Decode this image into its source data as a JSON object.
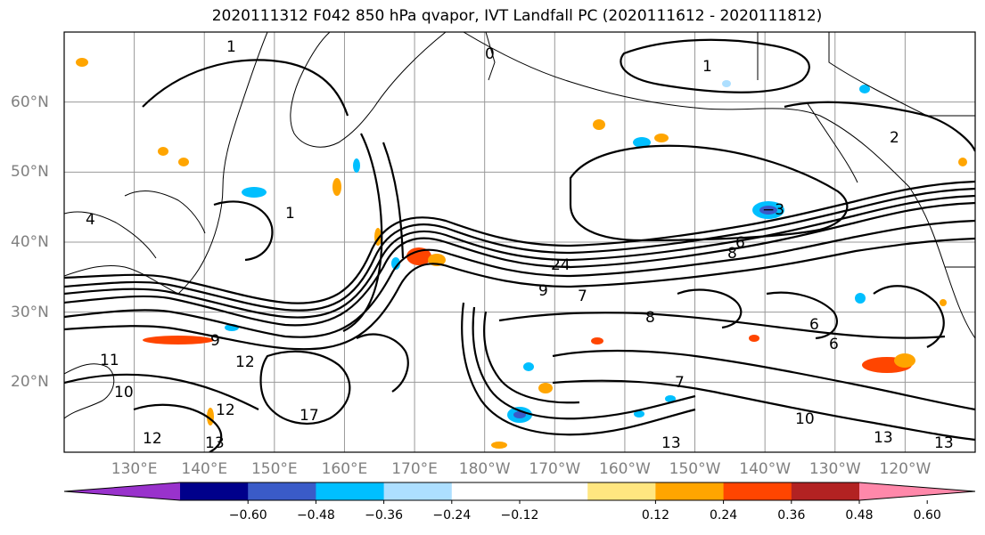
{
  "title": "2020111312 F042 850 hPa qvapor, IVT Landfall PC (2020111612 - 2020111812)",
  "map": {
    "lat_labels": [
      "60°N",
      "50°N",
      "40°N",
      "30°N",
      "20°N"
    ],
    "lon_labels": [
      "130°E",
      "140°E",
      "150°E",
      "160°E",
      "170°E",
      "180°W",
      "170°W",
      "160°W",
      "150°W",
      "140°W",
      "130°W",
      "120°W"
    ],
    "extent": {
      "lon_min": 120,
      "lon_max": 250,
      "lat_min": 10,
      "lat_max": 70
    }
  },
  "colorbar": {
    "colors": [
      "#9932CC",
      "#00008B",
      "#3A5BC8",
      "#00BFFF",
      "#ADDFFF",
      "#FFFFFF",
      "#FFFFFF",
      "#FFE680",
      "#FFA500",
      "#FF4500",
      "#B22222",
      "#FF88AA"
    ],
    "tick_labels": [
      "−0.60",
      "−0.48",
      "−0.36",
      "−0.24",
      "−0.12",
      "0.12",
      "0.24",
      "0.36",
      "0.48",
      "0.60"
    ]
  },
  "contour_labels": [
    "1",
    "1",
    "1",
    "2",
    "3",
    "6",
    "6",
    "6",
    "7",
    "7",
    "8",
    "8",
    "9",
    "9",
    "10",
    "10",
    "11",
    "12",
    "12",
    "12",
    "13",
    "13",
    "13",
    "13",
    "17",
    "24",
    "−3",
    "0",
    "4"
  ]
}
